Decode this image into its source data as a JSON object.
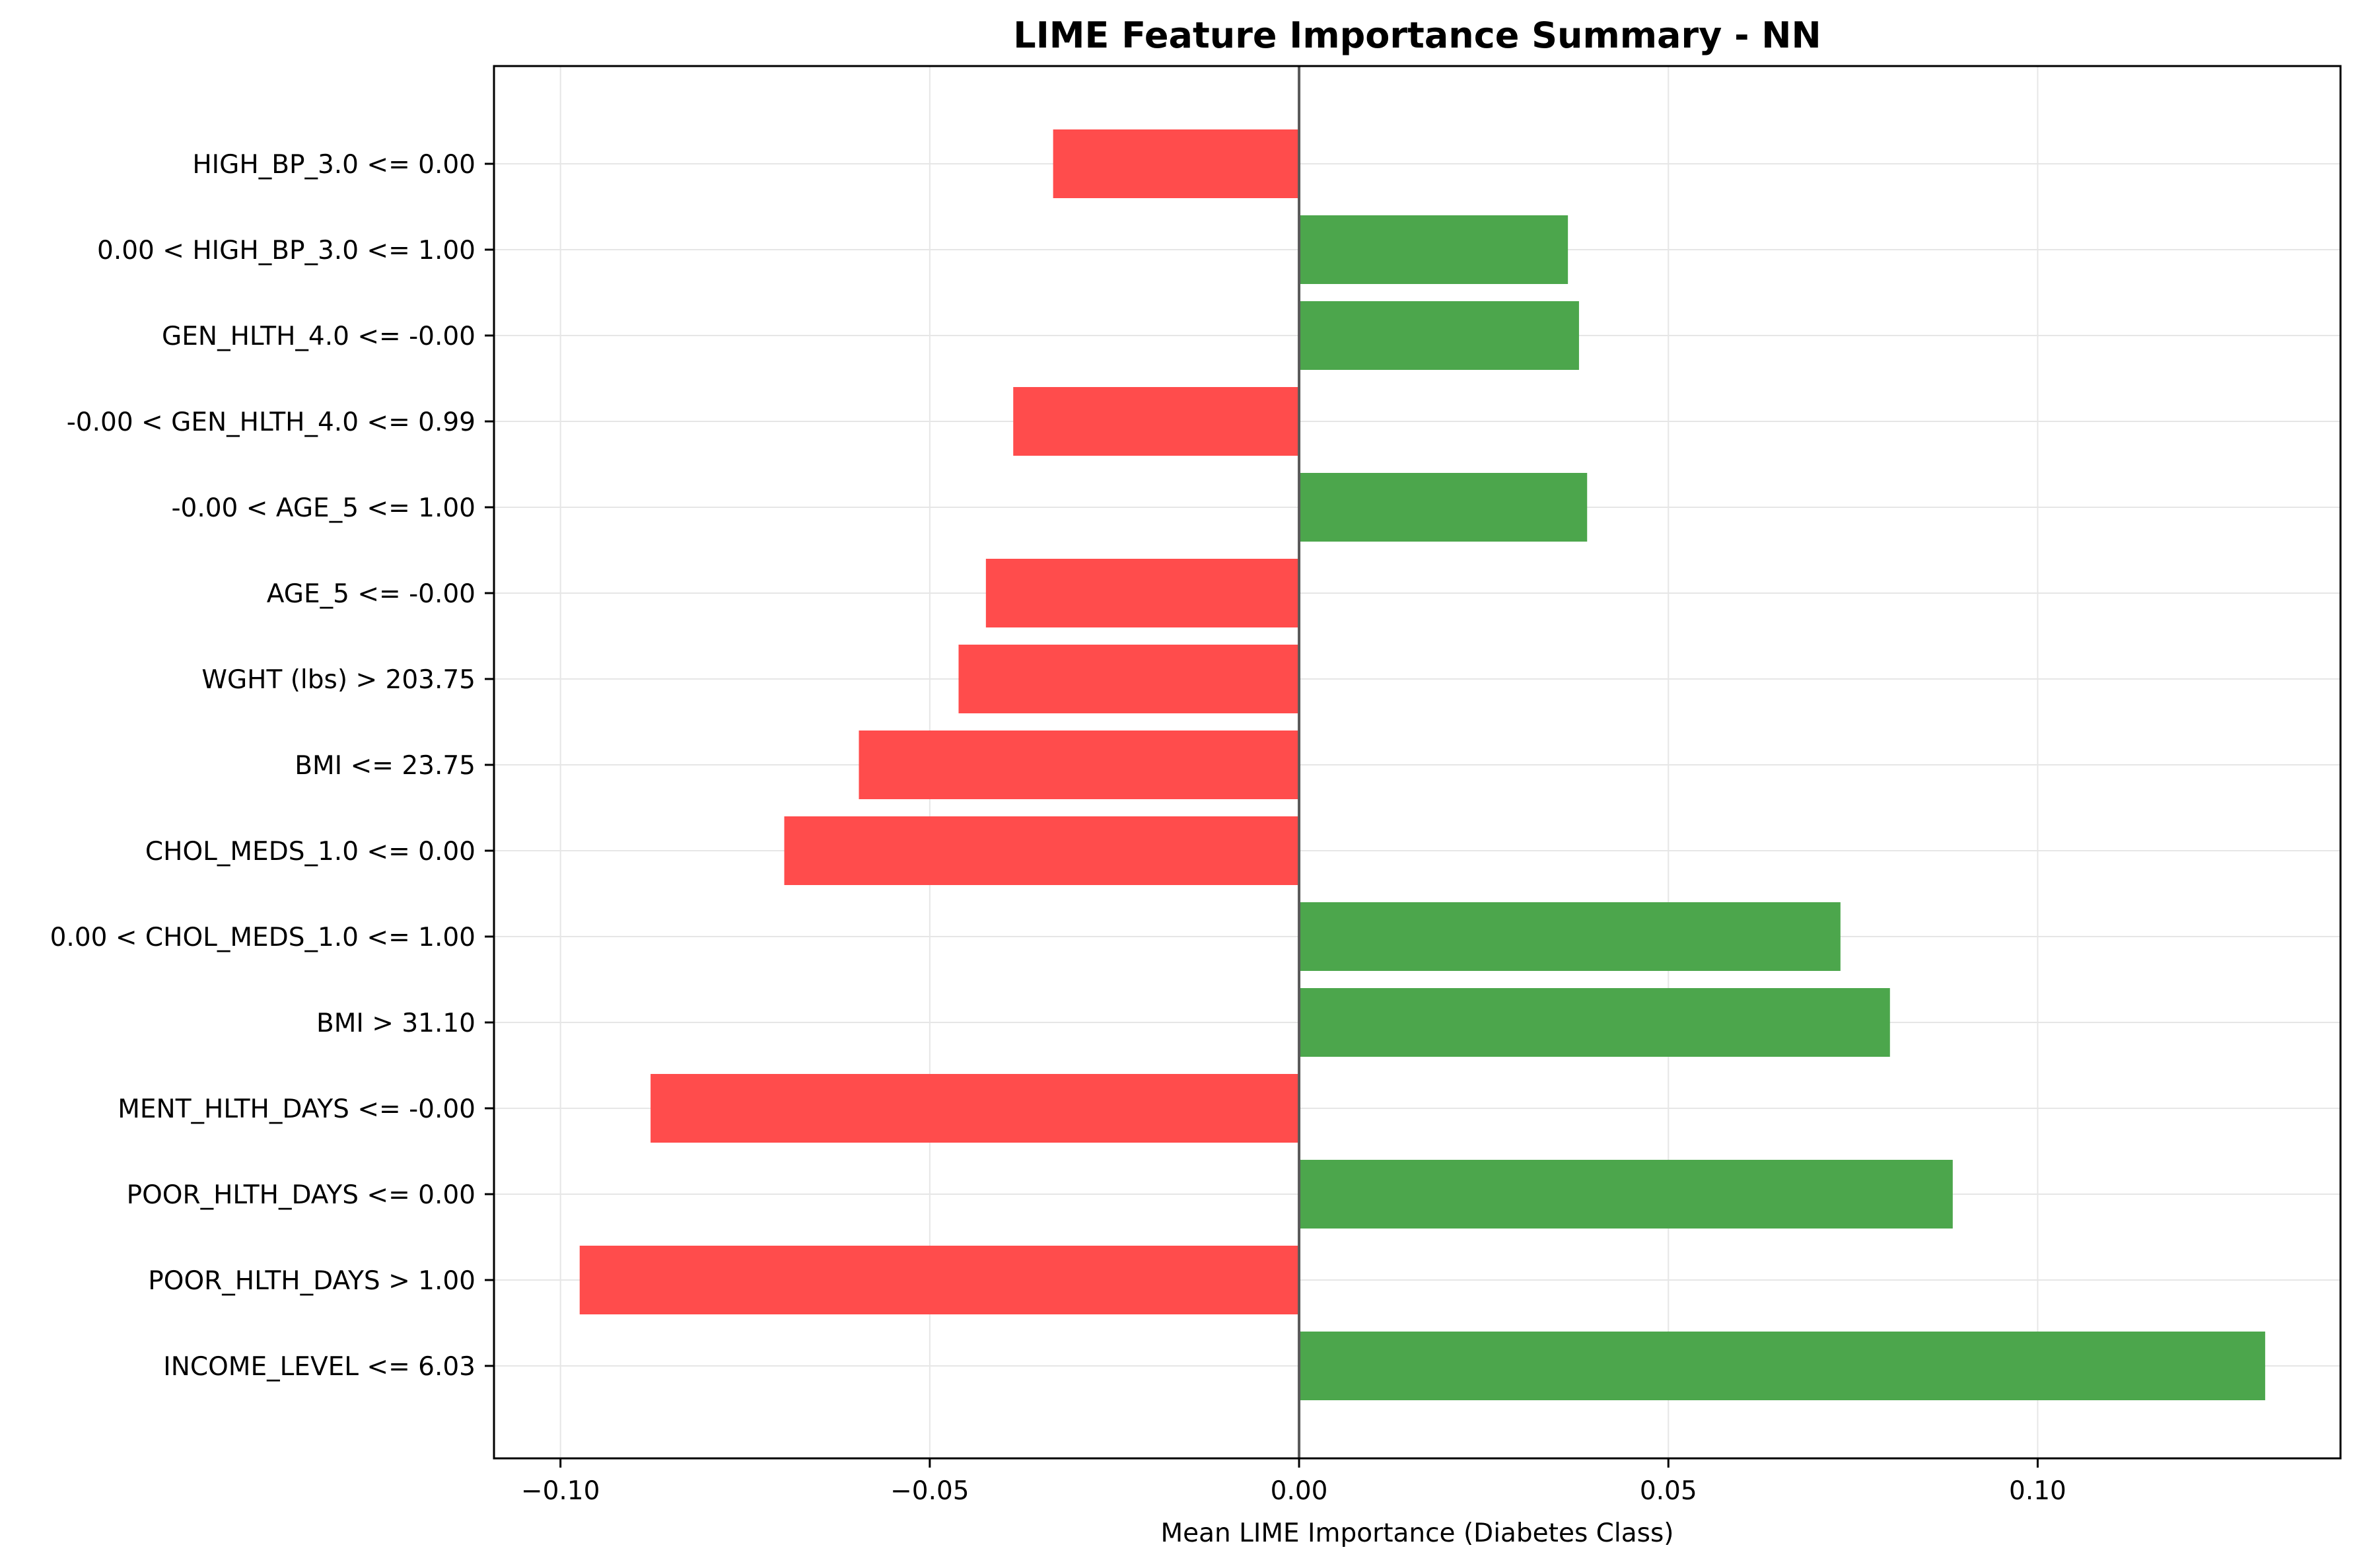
{
  "chart_data": {
    "type": "bar",
    "orientation": "horizontal",
    "title": "LIME Feature Importance Summary - NN",
    "xlabel": "Mean LIME Importance (Diabetes Class)",
    "ylabel": "",
    "xlim": [
      -0.109,
      0.141
    ],
    "xticks": [
      -0.1,
      -0.05,
      0.0,
      0.05,
      0.1
    ],
    "xtick_labels": [
      "−0.10",
      "−0.05",
      "0.00",
      "0.05",
      "0.10"
    ],
    "grid": true,
    "colors": {
      "positive": "#4ca64c",
      "negative": "#ff4c4c",
      "grid": "#e6e6e6",
      "zero_line": "#595959"
    },
    "categories": [
      "HIGH_BP_3.0 <= 0.00",
      "0.00 < HIGH_BP_3.0 <= 1.00",
      "GEN_HLTH_4.0 <= -0.00",
      "-0.00 < GEN_HLTH_4.0 <= 0.99",
      "-0.00 < AGE_5 <= 1.00",
      "AGE_5 <= -0.00",
      "WGHT (lbs) > 203.75",
      "BMI <= 23.75",
      "CHOL_MEDS_1.0 <= 0.00",
      "0.00 < CHOL_MEDS_1.0 <= 1.00",
      "BMI > 31.10",
      "MENT_HLTH_DAYS <= -0.00",
      "POOR_HLTH_DAYS <= 0.00",
      "POOR_HLTH_DAYS > 1.00",
      "INCOME_LEVEL <= 6.03"
    ],
    "values": [
      -0.0333,
      0.0364,
      0.0379,
      -0.0387,
      0.039,
      -0.0424,
      -0.0461,
      -0.0596,
      -0.0697,
      0.0733,
      0.08,
      -0.0878,
      0.0885,
      -0.0974,
      0.1308
    ]
  }
}
